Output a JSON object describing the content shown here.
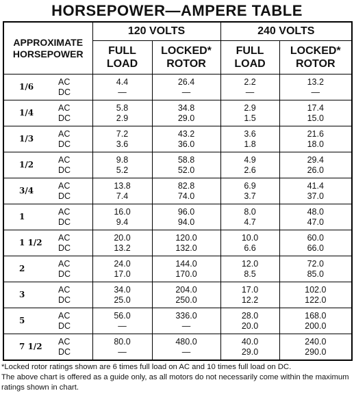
{
  "title": "HORSEPOWER—AMPERE TABLE",
  "table": {
    "header": {
      "hp": "APPROXIMATE\nHORSEPOWER",
      "groups": [
        {
          "label": "120 VOLTS",
          "columns": [
            "FULL\nLOAD",
            "LOCKED*\nROTOR"
          ]
        },
        {
          "label": "240 VOLTS",
          "columns": [
            "FULL\nLOAD",
            "LOCKED*\nROTOR"
          ]
        }
      ]
    },
    "rows": [
      {
        "hp": "1/6",
        "lines": [
          {
            "type": "AC",
            "values": [
              "4.4",
              "26.4",
              "2.2",
              "13.2"
            ]
          },
          {
            "type": "DC",
            "values": [
              "—",
              "—",
              "—",
              "—"
            ]
          }
        ]
      },
      {
        "hp": "1/4",
        "lines": [
          {
            "type": "AC",
            "values": [
              "5.8",
              "34.8",
              "2.9",
              "17.4"
            ]
          },
          {
            "type": "DC",
            "values": [
              "2.9",
              "29.0",
              "1.5",
              "15.0"
            ]
          }
        ]
      },
      {
        "hp": "1/3",
        "lines": [
          {
            "type": "AC",
            "values": [
              "7.2",
              "43.2",
              "3.6",
              "21.6"
            ]
          },
          {
            "type": "DC",
            "values": [
              "3.6",
              "36.0",
              "1.8",
              "18.0"
            ]
          }
        ]
      },
      {
        "hp": "1/2",
        "lines": [
          {
            "type": "AC",
            "values": [
              "9.8",
              "58.8",
              "4.9",
              "29.4"
            ]
          },
          {
            "type": "DC",
            "values": [
              "5.2",
              "52.0",
              "2.6",
              "26.0"
            ]
          }
        ]
      },
      {
        "hp": "3/4",
        "lines": [
          {
            "type": "AC",
            "values": [
              "13.8",
              "82.8",
              "6.9",
              "41.4"
            ]
          },
          {
            "type": "DC",
            "values": [
              "7.4",
              "74.0",
              "3.7",
              "37.0"
            ]
          }
        ]
      },
      {
        "hp": "1",
        "lines": [
          {
            "type": "AC",
            "values": [
              "16.0",
              "96.0",
              "8.0",
              "48.0"
            ]
          },
          {
            "type": "DC",
            "values": [
              "9.4",
              "94.0",
              "4.7",
              "47.0"
            ]
          }
        ]
      },
      {
        "hp": "1 1/2",
        "lines": [
          {
            "type": "AC",
            "values": [
              "20.0",
              "120.0",
              "10.0",
              "60.0"
            ]
          },
          {
            "type": "DC",
            "values": [
              "13.2",
              "132.0",
              "6.6",
              "66.0"
            ]
          }
        ]
      },
      {
        "hp": "2",
        "lines": [
          {
            "type": "AC",
            "values": [
              "24.0",
              "144.0",
              "12.0",
              "72.0"
            ]
          },
          {
            "type": "DC",
            "values": [
              "17.0",
              "170.0",
              "8.5",
              "85.0"
            ]
          }
        ]
      },
      {
        "hp": "3",
        "lines": [
          {
            "type": "AC",
            "values": [
              "34.0",
              "204.0",
              "17.0",
              "102.0"
            ]
          },
          {
            "type": "DC",
            "values": [
              "25.0",
              "250.0",
              "12.2",
              "122.0"
            ]
          }
        ]
      },
      {
        "hp": "5",
        "lines": [
          {
            "type": "AC",
            "values": [
              "56.0",
              "336.0",
              "28.0",
              "168.0"
            ]
          },
          {
            "type": "DC",
            "values": [
              "—",
              "—",
              "20.0",
              "200.0"
            ]
          }
        ]
      },
      {
        "hp": "7 1/2",
        "lines": [
          {
            "type": "AC",
            "values": [
              "80.0",
              "480.0",
              "40.0",
              "240.0"
            ]
          },
          {
            "type": "DC",
            "values": [
              "—",
              "—",
              "29.0",
              "290.0"
            ]
          }
        ]
      }
    ]
  },
  "footnotes": [
    "*Locked rotor ratings shown are 6 times full load on AC and 10 times full load on DC.",
    "The above chart is offered as a guide only, as all motors do not necessarily come within the maximum ratings shown in chart."
  ]
}
